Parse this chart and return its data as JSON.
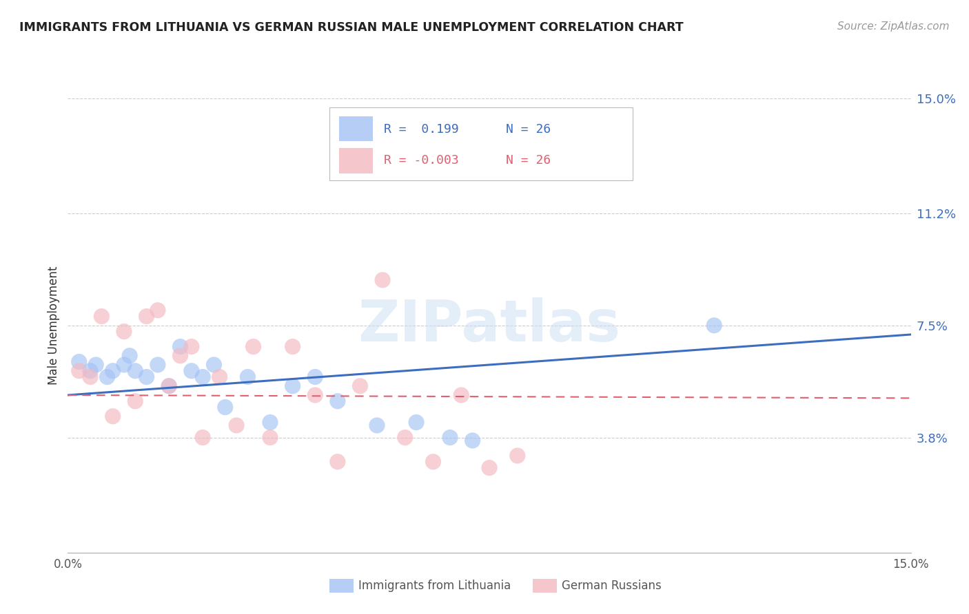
{
  "title": "IMMIGRANTS FROM LITHUANIA VS GERMAN RUSSIAN MALE UNEMPLOYMENT CORRELATION CHART",
  "source": "Source: ZipAtlas.com",
  "ylabel": "Male Unemployment",
  "xlim": [
    0.0,
    0.15
  ],
  "ylim": [
    0.0,
    0.15
  ],
  "ytick_vals": [
    0.038,
    0.075,
    0.112,
    0.15
  ],
  "ytick_labels": [
    "3.8%",
    "7.5%",
    "11.2%",
    "15.0%"
  ],
  "blue_color": "#a4c2f4",
  "pink_color": "#f4b8c1",
  "blue_line_color": "#3d6dbf",
  "pink_line_color": "#e06070",
  "watermark_text": "ZIPatlas",
  "legend_R_blue": " 0.199",
  "legend_N_blue": "26",
  "legend_R_pink": "-0.003",
  "legend_N_pink": "26",
  "blue_x": [
    0.002,
    0.004,
    0.005,
    0.007,
    0.008,
    0.01,
    0.011,
    0.012,
    0.014,
    0.016,
    0.018,
    0.02,
    0.022,
    0.024,
    0.026,
    0.028,
    0.032,
    0.036,
    0.04,
    0.044,
    0.048,
    0.055,
    0.062,
    0.068,
    0.072,
    0.115
  ],
  "blue_y": [
    0.063,
    0.06,
    0.062,
    0.058,
    0.06,
    0.062,
    0.065,
    0.06,
    0.058,
    0.062,
    0.055,
    0.068,
    0.06,
    0.058,
    0.062,
    0.048,
    0.058,
    0.043,
    0.055,
    0.058,
    0.05,
    0.042,
    0.043,
    0.038,
    0.037,
    0.075
  ],
  "pink_x": [
    0.002,
    0.004,
    0.006,
    0.008,
    0.01,
    0.012,
    0.014,
    0.016,
    0.018,
    0.02,
    0.022,
    0.024,
    0.027,
    0.03,
    0.033,
    0.036,
    0.04,
    0.044,
    0.048,
    0.052,
    0.056,
    0.06,
    0.065,
    0.07,
    0.075,
    0.08
  ],
  "pink_y": [
    0.06,
    0.058,
    0.078,
    0.045,
    0.073,
    0.05,
    0.078,
    0.08,
    0.055,
    0.065,
    0.068,
    0.038,
    0.058,
    0.042,
    0.068,
    0.038,
    0.068,
    0.052,
    0.03,
    0.055,
    0.09,
    0.038,
    0.03,
    0.052,
    0.028,
    0.032
  ],
  "blue_line_x0": 0.0,
  "blue_line_x1": 0.15,
  "blue_line_y0": 0.052,
  "blue_line_y1": 0.072,
  "pink_line_x0": 0.0,
  "pink_line_x1": 0.15,
  "pink_line_y0": 0.052,
  "pink_line_y1": 0.051,
  "legend_label_blue": "Immigrants from Lithuania",
  "legend_label_pink": "German Russians"
}
